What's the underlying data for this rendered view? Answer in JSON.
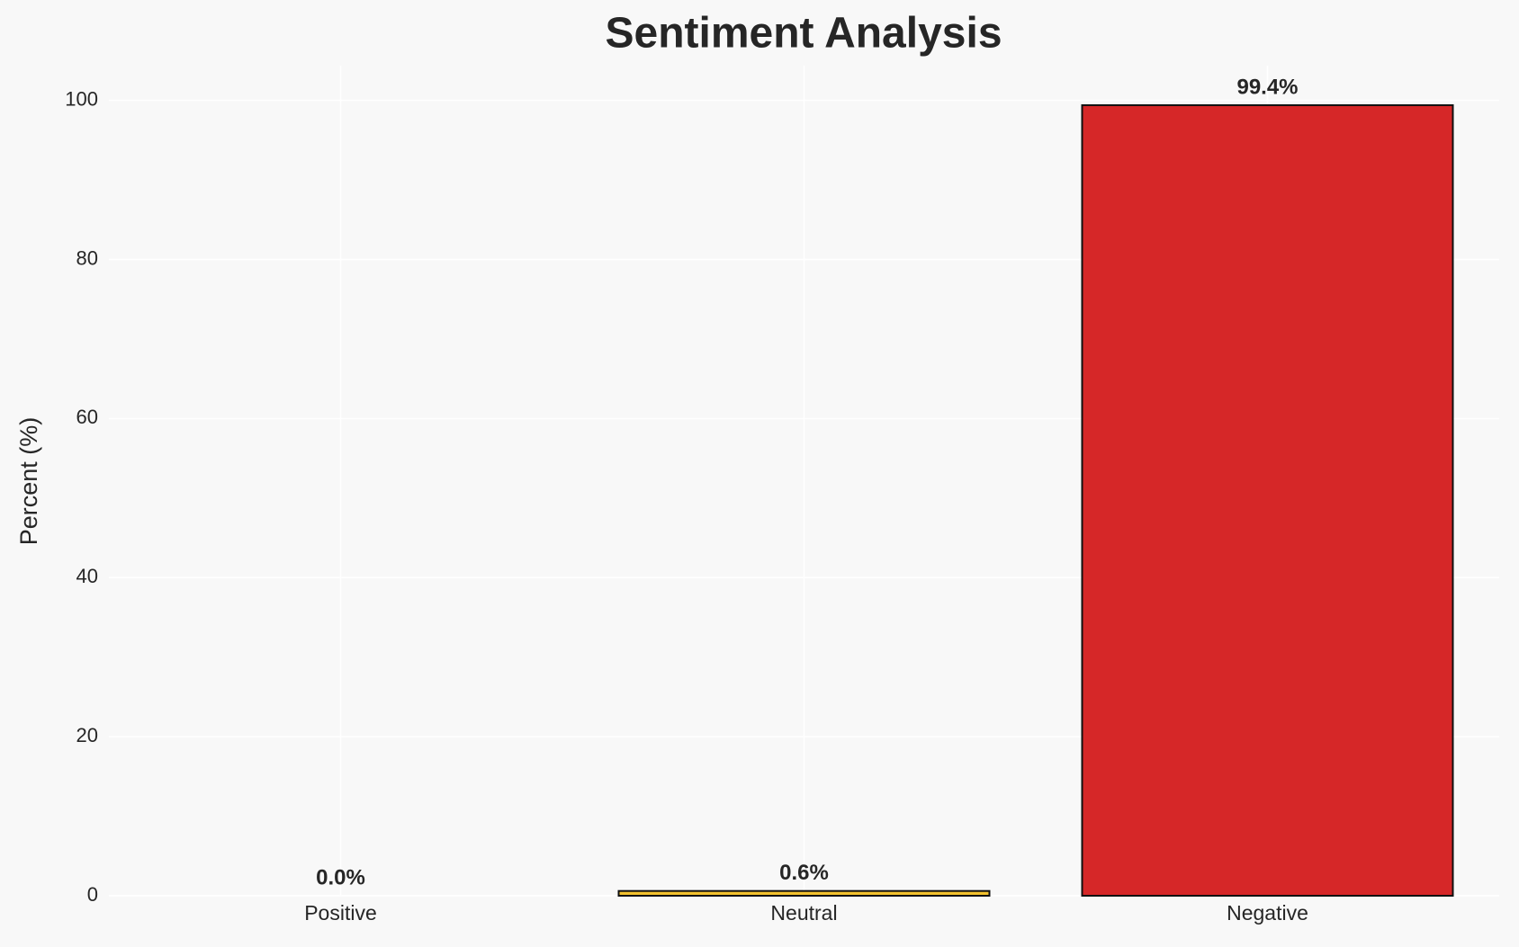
{
  "chart_data": {
    "type": "bar",
    "title": "Sentiment Analysis",
    "y_label": "Percent (%)",
    "categories": [
      "Positive",
      "Neutral",
      "Negative"
    ],
    "values": [
      0.0,
      0.6,
      99.4
    ],
    "value_labels": [
      "0.0%",
      "0.6%",
      "99.4%"
    ],
    "colors": [
      "#2ca02c",
      "#f2c12e",
      "#d62728"
    ],
    "ylim": [
      0,
      104.37
    ],
    "yticks": [
      0,
      20,
      40,
      60,
      80,
      100
    ],
    "grid": true
  }
}
